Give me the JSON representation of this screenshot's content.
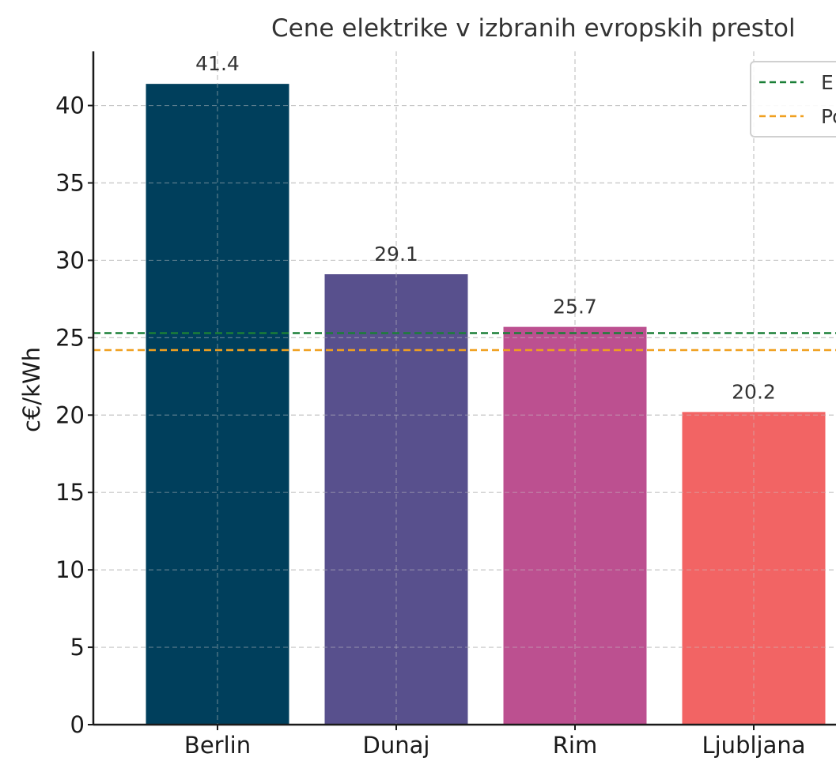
{
  "chart_data": {
    "type": "bar",
    "title": "Cene elektrike v izbranih evropskih prestol",
    "xlabel": "",
    "ylabel": "c€/kWh",
    "categories": [
      "Berlin",
      "Dunaj",
      "Rim",
      "Ljubljana"
    ],
    "values": [
      41.4,
      29.1,
      25.7,
      20.2
    ],
    "value_labels": [
      "41.4",
      "29.1",
      "25.7",
      "20.2"
    ],
    "bar_colors": [
      "#003f5c",
      "#58508d",
      "#bc5090",
      "#f26464"
    ],
    "ylim": [
      0,
      43.5
    ],
    "yticks": [
      0,
      5,
      10,
      15,
      20,
      25,
      30,
      35,
      40
    ],
    "grid": true,
    "reference_lines": [
      {
        "label": "E",
        "value": 25.3,
        "color": "#1a7f37",
        "style": "dashed"
      },
      {
        "label": "Po",
        "value": 24.2,
        "color": "#f0a020",
        "style": "dashed"
      }
    ],
    "legend_position": "top-right"
  }
}
